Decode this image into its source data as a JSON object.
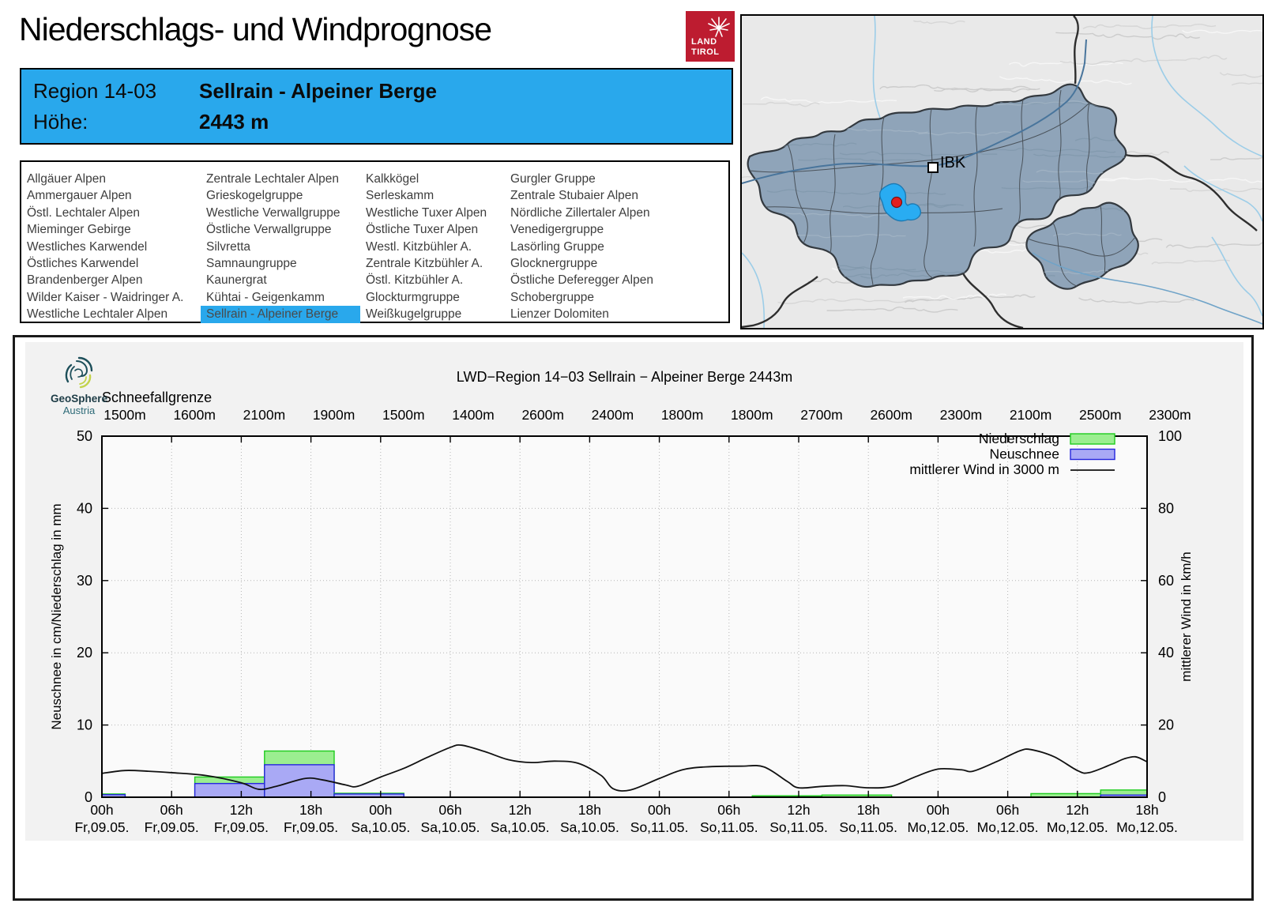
{
  "page": {
    "title": "Niederschlags- und Windprognose"
  },
  "logo": {
    "line1": "LAND",
    "line2": "TIROL"
  },
  "region_header": {
    "region_label": "Region 14-03",
    "region_name": "Sellrain - Alpeiner Berge",
    "altitude_label": "Höhe:",
    "altitude_value": "2443 m",
    "accent_color": "#29a8ec"
  },
  "region_list": {
    "selected": "Sellrain - Alpeiner Berge",
    "columns": [
      [
        "Allgäuer Alpen",
        "Ammergauer Alpen",
        "Östl. Lechtaler Alpen",
        "Mieminger Gebirge",
        "Westliches Karwendel",
        "Östliches Karwendel",
        "Brandenberger Alpen",
        "Wilder Kaiser - Waidringer A.",
        "Westliche Lechtaler Alpen"
      ],
      [
        "Zentrale Lechtaler Alpen",
        "Grieskogelgruppe",
        "Westliche Verwallgruppe",
        "Östliche Verwallgruppe",
        "Silvretta",
        "Samnaungruppe",
        "Kaunergrat",
        "Kühtai - Geigenkamm",
        "Sellrain - Alpeiner Berge"
      ],
      [
        "Kalkkögel",
        "Serleskamm",
        "Westliche Tuxer Alpen",
        "Östliche Tuxer Alpen",
        "Westl. Kitzbühler A.",
        "Zentrale Kitzbühler A.",
        "Östl. Kitzbühler A.",
        "Glockturmgruppe",
        "Weißkugelgruppe"
      ],
      [
        "Gurgler Gruppe",
        "Zentrale Stubaier Alpen",
        "Nördliche Zillertaler Alpen",
        "Venedigergruppe",
        "Lasörling Gruppe",
        "Glocknergruppe",
        "Östliche Deferegger Alpen",
        "Schobergruppe",
        "Lienzer Dolomiten"
      ]
    ]
  },
  "map": {
    "city_label": "IBK",
    "highlight_color": "#29acf2",
    "marker_color": "#e31e1e"
  },
  "geosphere": {
    "name": "GeoSphere",
    "sub": "Austria"
  },
  "chart_data": {
    "type": "bar+line",
    "title": "LWD−Region 14−03 Sellrain − Alpeiner Berge 2443m",
    "snowline": {
      "label": "Schneefallgrenze",
      "values": [
        "1500m",
        "1600m",
        "2100m",
        "1900m",
        "1500m",
        "1400m",
        "2600m",
        "2400m",
        "1800m",
        "1800m",
        "2700m",
        "2600m",
        "2300m",
        "2100m",
        "2500m",
        "2300m"
      ]
    },
    "x_ticks": [
      {
        "time": "00h",
        "date": "Fr,09.05."
      },
      {
        "time": "06h",
        "date": "Fr,09.05."
      },
      {
        "time": "12h",
        "date": "Fr,09.05."
      },
      {
        "time": "18h",
        "date": "Fr,09.05."
      },
      {
        "time": "00h",
        "date": "Sa,10.05."
      },
      {
        "time": "06h",
        "date": "Sa,10.05."
      },
      {
        "time": "12h",
        "date": "Sa,10.05."
      },
      {
        "time": "18h",
        "date": "Sa,10.05."
      },
      {
        "time": "00h",
        "date": "So,11.05."
      },
      {
        "time": "06h",
        "date": "So,11.05."
      },
      {
        "time": "12h",
        "date": "So,11.05."
      },
      {
        "time": "18h",
        "date": "So,11.05."
      },
      {
        "time": "00h",
        "date": "Mo,12.05."
      },
      {
        "time": "06h",
        "date": "Mo,12.05."
      },
      {
        "time": "12h",
        "date": "Mo,12.05."
      },
      {
        "time": "18h",
        "date": "Mo,12.05."
      }
    ],
    "hours_span": 90,
    "tick_interval_h": 6,
    "y_left": {
      "label": "Neuschnee in cm/Niederschlag in mm",
      "min": 0,
      "max": 50,
      "ticks": [
        0,
        10,
        20,
        30,
        40,
        50
      ]
    },
    "y_right": {
      "label": "mittlerer Wind in km/h",
      "min": 0,
      "max": 100,
      "ticks": [
        0,
        20,
        40,
        60,
        80,
        100
      ]
    },
    "legend": [
      {
        "label": "Niederschlag",
        "type": "box",
        "fill": "#9bee90",
        "stroke": "#1ecc1e"
      },
      {
        "label": "Neuschnee",
        "type": "box",
        "fill": "#a9a9f5",
        "stroke": "#2525dd"
      },
      {
        "label": "mittlerer Wind in 3000 m",
        "type": "line",
        "stroke": "#111111"
      }
    ],
    "bars": [
      {
        "start_h": 0,
        "end_h": 2,
        "niederschlag_mm": 0.45,
        "neuschnee_cm": 0.35
      },
      {
        "start_h": 8,
        "end_h": 14,
        "niederschlag_mm": 2.8,
        "neuschnee_cm": 1.9
      },
      {
        "start_h": 14,
        "end_h": 20,
        "niederschlag_mm": 6.4,
        "neuschnee_cm": 4.5
      },
      {
        "start_h": 20,
        "end_h": 26,
        "niederschlag_mm": 0.55,
        "neuschnee_cm": 0.45
      },
      {
        "start_h": 56,
        "end_h": 62,
        "niederschlag_mm": 0.2,
        "neuschnee_cm": 0
      },
      {
        "start_h": 62,
        "end_h": 68,
        "niederschlag_mm": 0.3,
        "neuschnee_cm": 0
      },
      {
        "start_h": 80,
        "end_h": 86,
        "niederschlag_mm": 0.5,
        "neuschnee_cm": 0
      },
      {
        "start_h": 86,
        "end_h": 90,
        "niederschlag_mm": 1.0,
        "neuschnee_cm": 0.3
      }
    ],
    "wind_kmh": [
      [
        0,
        6.6
      ],
      [
        2,
        7.4
      ],
      [
        4,
        7.2
      ],
      [
        6,
        6.8
      ],
      [
        9,
        6.0
      ],
      [
        12,
        4.0
      ],
      [
        13.5,
        2.2
      ],
      [
        15,
        3.0
      ],
      [
        17.5,
        5.2
      ],
      [
        19,
        4.8
      ],
      [
        21,
        3.4
      ],
      [
        22,
        3.0
      ],
      [
        24,
        5.6
      ],
      [
        26,
        8.0
      ],
      [
        28,
        11.0
      ],
      [
        30,
        13.8
      ],
      [
        31,
        14.4
      ],
      [
        33,
        12.6
      ],
      [
        35,
        10.4
      ],
      [
        37,
        9.6
      ],
      [
        39,
        10.0
      ],
      [
        41,
        9.4
      ],
      [
        43,
        6.0
      ],
      [
        44,
        2.4
      ],
      [
        45.5,
        2.0
      ],
      [
        48,
        5.2
      ],
      [
        50,
        7.6
      ],
      [
        52,
        8.4
      ],
      [
        55,
        8.6
      ],
      [
        57,
        8.4
      ],
      [
        59,
        4.4
      ],
      [
        60,
        2.6
      ],
      [
        62,
        3.0
      ],
      [
        64,
        3.2
      ],
      [
        66,
        2.6
      ],
      [
        68,
        3.0
      ],
      [
        70,
        5.6
      ],
      [
        72,
        7.8
      ],
      [
        74,
        7.6
      ],
      [
        75,
        7.2
      ],
      [
        77,
        9.8
      ],
      [
        79,
        12.8
      ],
      [
        80,
        13.2
      ],
      [
        82,
        11.2
      ],
      [
        84,
        7.4
      ],
      [
        85,
        6.8
      ],
      [
        87,
        9.2
      ],
      [
        88,
        10.6
      ],
      [
        89,
        11.2
      ],
      [
        90,
        9.8
      ]
    ]
  }
}
